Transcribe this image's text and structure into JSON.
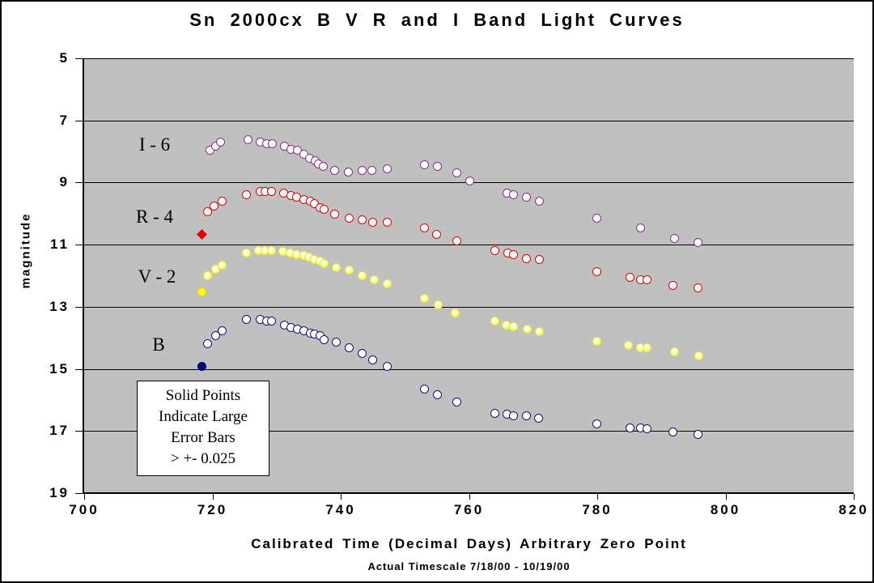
{
  "title": "Sn 2000cx B V R and I Band Light Curves",
  "axes": {
    "y_label": "magnitude",
    "x_label": "Calibrated Time (Decimal Days) Arbitrary Zero Point",
    "x_note": "Actual Timescale 7/18/00 -  10/19/00"
  },
  "y_axis": {
    "ticks": [
      5,
      7,
      9,
      11,
      13,
      15,
      17,
      19
    ]
  },
  "x_axis": {
    "ticks": [
      700,
      720,
      740,
      760,
      780,
      800,
      820
    ]
  },
  "series_labels": {
    "i": "I - 6",
    "r": "R - 4",
    "v": "V - 2",
    "b": "B"
  },
  "annotation": {
    "lines": [
      "Solid Points",
      "Indicate Large",
      "Error Bars",
      "> +- 0.025"
    ]
  },
  "colors": {
    "plot_bg": "#C0C0C0",
    "i_stroke": "#8A2B8F",
    "r_stroke": "#E00000",
    "v_fill": "#FFFF33",
    "b_stroke": "#10107A",
    "solid_red": "#E80000",
    "solid_yellow": "#FFFF00",
    "solid_navy": "#00067A"
  },
  "chart_data": {
    "type": "scatter",
    "title": "Sn 2000cx B V R and I Band Light Curves",
    "xlabel": "Calibrated Time (Decimal Days) Arbitrary Zero Point",
    "ylabel": "magnitude",
    "xlim": [
      700,
      820
    ],
    "ylim": [
      5,
      19
    ],
    "y_axis_inverted_display": true,
    "grid": "horizontal",
    "legend_position": "in-plot text labels",
    "series": [
      {
        "name": "I - 6",
        "band": "I",
        "shape": "circle",
        "fill": "#FFFFFF",
        "stroke": "#8A2B8F",
        "points": [
          [
            719.6,
            7.97
          ],
          [
            720.5,
            7.84
          ],
          [
            721.3,
            7.71
          ],
          [
            725.5,
            7.61
          ],
          [
            727.5,
            7.69
          ],
          [
            728.5,
            7.74
          ],
          [
            729.4,
            7.76
          ],
          [
            731.2,
            7.84
          ],
          [
            732.2,
            7.92
          ],
          [
            733.2,
            7.97
          ],
          [
            734.3,
            8.08
          ],
          [
            735.1,
            8.21
          ],
          [
            736.0,
            8.31
          ],
          [
            736.5,
            8.39
          ],
          [
            737.3,
            8.49
          ],
          [
            739.1,
            8.6
          ],
          [
            741.2,
            8.65
          ],
          [
            743.3,
            8.62
          ],
          [
            744.9,
            8.62
          ],
          [
            747.2,
            8.55
          ],
          [
            753.1,
            8.42
          ],
          [
            755.1,
            8.49
          ],
          [
            758.1,
            8.7
          ],
          [
            760.1,
            8.94
          ],
          [
            765.9,
            9.33
          ],
          [
            766.9,
            9.38
          ],
          [
            769.0,
            9.48
          ],
          [
            771.0,
            9.61
          ],
          [
            779.9,
            10.14
          ],
          [
            786.8,
            10.45
          ],
          [
            792.0,
            10.79
          ],
          [
            795.7,
            10.92
          ]
        ]
      },
      {
        "name": "R - 4",
        "band": "R",
        "shape": "circle",
        "fill": "#FFFFFF",
        "stroke": "#E00000",
        "points": [
          [
            719.2,
            9.95
          ],
          [
            720.3,
            9.77
          ],
          [
            721.5,
            9.61
          ],
          [
            725.3,
            9.38
          ],
          [
            727.4,
            9.3
          ],
          [
            728.2,
            9.28
          ],
          [
            729.2,
            9.28
          ],
          [
            731.1,
            9.35
          ],
          [
            732.2,
            9.41
          ],
          [
            733.1,
            9.46
          ],
          [
            734.3,
            9.54
          ],
          [
            735.3,
            9.61
          ],
          [
            735.9,
            9.69
          ],
          [
            736.8,
            9.8
          ],
          [
            737.4,
            9.87
          ],
          [
            739.1,
            10.03
          ],
          [
            741.3,
            10.16
          ],
          [
            743.3,
            10.21
          ],
          [
            745.0,
            10.29
          ],
          [
            747.2,
            10.29
          ],
          [
            753.1,
            10.47
          ],
          [
            755.0,
            10.66
          ],
          [
            758.1,
            10.89
          ],
          [
            764.1,
            11.18
          ],
          [
            766.0,
            11.26
          ],
          [
            767.0,
            11.31
          ],
          [
            769.0,
            11.44
          ],
          [
            771.0,
            11.49
          ],
          [
            779.9,
            11.86
          ],
          [
            785.1,
            12.06
          ],
          [
            786.7,
            12.12
          ],
          [
            787.7,
            12.12
          ],
          [
            791.8,
            12.3
          ],
          [
            795.7,
            12.4
          ]
        ]
      },
      {
        "name": "V - 2",
        "band": "V",
        "shape": "circle",
        "fill": "#FFFF33",
        "stroke": "#E8E83A",
        "highlight": true,
        "points": [
          [
            719.3,
            11.99
          ],
          [
            720.5,
            11.8
          ],
          [
            721.5,
            11.65
          ],
          [
            725.3,
            11.28
          ],
          [
            727.2,
            11.2
          ],
          [
            728.2,
            11.18
          ],
          [
            729.2,
            11.2
          ],
          [
            731.0,
            11.23
          ],
          [
            732.1,
            11.28
          ],
          [
            733.1,
            11.31
          ],
          [
            734.3,
            11.36
          ],
          [
            735.0,
            11.41
          ],
          [
            735.9,
            11.47
          ],
          [
            736.8,
            11.54
          ],
          [
            737.4,
            11.62
          ],
          [
            739.3,
            11.73
          ],
          [
            741.3,
            11.83
          ],
          [
            743.3,
            11.99
          ],
          [
            745.2,
            12.12
          ],
          [
            747.2,
            12.25
          ],
          [
            753.1,
            12.72
          ],
          [
            755.2,
            12.95
          ],
          [
            757.8,
            13.19
          ],
          [
            764.1,
            13.45
          ],
          [
            765.8,
            13.6
          ],
          [
            766.9,
            13.63
          ],
          [
            769.1,
            13.71
          ],
          [
            771.0,
            13.79
          ],
          [
            779.9,
            14.1
          ],
          [
            784.9,
            14.23
          ],
          [
            786.7,
            14.33
          ],
          [
            787.7,
            14.31
          ],
          [
            792.0,
            14.46
          ],
          [
            795.8,
            14.59
          ]
        ]
      },
      {
        "name": "B",
        "band": "B",
        "shape": "circle",
        "fill": "#FFFFFF",
        "stroke": "#10107A",
        "points": [
          [
            719.3,
            14.18
          ],
          [
            720.5,
            13.94
          ],
          [
            721.5,
            13.76
          ],
          [
            725.3,
            13.42
          ],
          [
            727.4,
            13.42
          ],
          [
            728.4,
            13.45
          ],
          [
            729.2,
            13.45
          ],
          [
            731.2,
            13.58
          ],
          [
            732.2,
            13.66
          ],
          [
            733.2,
            13.71
          ],
          [
            734.3,
            13.78
          ],
          [
            735.3,
            13.84
          ],
          [
            735.9,
            13.89
          ],
          [
            736.8,
            13.94
          ],
          [
            737.4,
            14.05
          ],
          [
            739.3,
            14.15
          ],
          [
            741.3,
            14.31
          ],
          [
            743.3,
            14.49
          ],
          [
            745.0,
            14.7
          ],
          [
            747.2,
            14.93
          ],
          [
            753.1,
            15.64
          ],
          [
            755.1,
            15.84
          ],
          [
            758.1,
            16.08
          ],
          [
            764.0,
            16.42
          ],
          [
            765.9,
            16.47
          ],
          [
            766.9,
            16.5
          ],
          [
            769.0,
            16.52
          ],
          [
            770.9,
            16.6
          ],
          [
            779.9,
            16.78
          ],
          [
            785.1,
            16.91
          ],
          [
            786.8,
            16.91
          ],
          [
            787.7,
            16.94
          ],
          [
            791.8,
            17.04
          ],
          [
            795.7,
            17.12
          ]
        ]
      },
      {
        "name": "R large error point",
        "band": "R-solid",
        "shape": "diamond",
        "fill": "#E80000",
        "stroke": "#E80000",
        "points": [
          [
            718.3,
            10.68
          ]
        ]
      },
      {
        "name": "V large error point",
        "band": "V-solid",
        "shape": "circle",
        "fill": "#FFFF00",
        "stroke": "#DCDC00",
        "points": [
          [
            718.3,
            12.53
          ]
        ]
      },
      {
        "name": "B large error point",
        "band": "B-solid",
        "shape": "circle",
        "fill": "#00067A",
        "stroke": "#00067A",
        "points": [
          [
            718.3,
            14.91
          ]
        ]
      }
    ]
  }
}
